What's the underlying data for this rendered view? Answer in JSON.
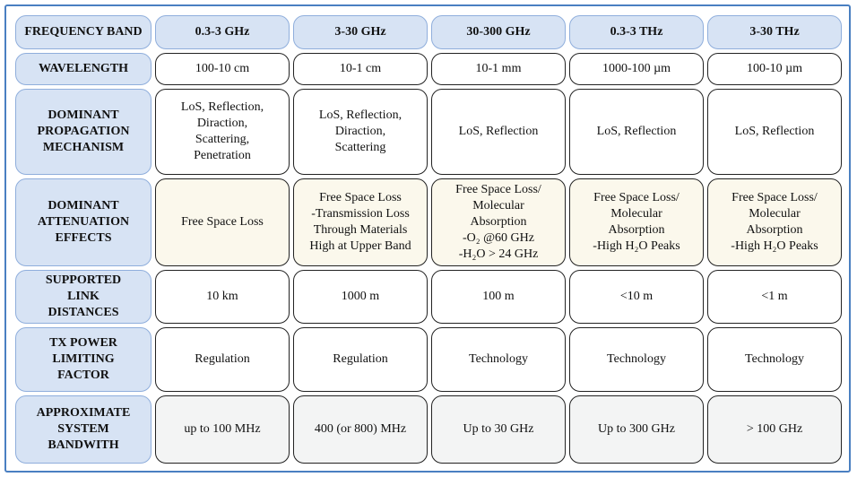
{
  "table": {
    "header": [
      "FREQUENCY BAND",
      "0.3-3 GHz",
      "3-30 GHz",
      "30-300 GHz",
      "0.3-3 THz",
      "3-30 THz"
    ],
    "rows": [
      [
        "WAVELENGTH",
        "100-10 cm",
        "10-1 cm",
        "10-1 mm",
        "1000-100 µm",
        "100-10 µm"
      ],
      [
        "DOMINANT\nPROPAGATION\nMECHANISM",
        "LoS, Reflection,\nDiraction,\nScattering,\nPenetration",
        "LoS, Reflection,\nDiraction,\nScattering",
        "LoS, Reflection",
        "LoS, Reflection",
        "LoS, Reflection"
      ],
      [
        "DOMINANT\nATTENUATION\nEFFECTS",
        "Free Space Loss",
        "Free Space Loss\n-Transmission Loss\nThrough Materials\nHigh at Upper Band",
        "Free Space Loss/\nMolecular\nAbsorption\n-O₂ @60 GHz\n-H₂O > 24 GHz",
        "Free Space Loss/\nMolecular\nAbsorption\n-High H₂O Peaks",
        "Free Space Loss/\nMolecular\nAbsorption\n-High H₂O Peaks"
      ],
      [
        "SUPPORTED\nLINK\nDISTANCES",
        "10 km",
        "1000 m",
        "100 m",
        "<10 m",
        "<1 m"
      ],
      [
        "TX POWER\nLIMITING\nFACTOR",
        "Regulation",
        "Regulation",
        "Technology",
        "Technology",
        "Technology"
      ],
      [
        "APPROXIMATE\nSYSTEM\nBANDWITH",
        "up to 100 MHz",
        "400 (or 800) MHz",
        "Up to 30 GHz",
        "Up to 300 GHz",
        "> 100 GHz"
      ]
    ]
  }
}
